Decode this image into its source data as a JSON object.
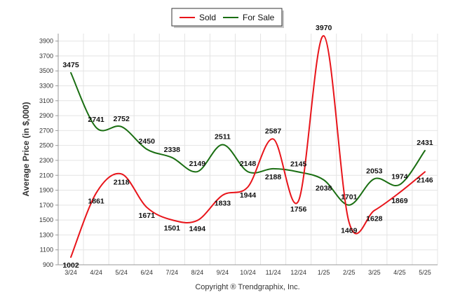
{
  "chart_data": {
    "type": "line",
    "categories": [
      "3/24",
      "4/24",
      "5/24",
      "6/24",
      "7/24",
      "8/24",
      "9/24",
      "10/24",
      "11/24",
      "12/24",
      "1/25",
      "2/25",
      "3/25",
      "4/25",
      "5/25"
    ],
    "series": [
      {
        "name": "Sold",
        "color": "#e8141a",
        "values": [
          1002,
          1861,
          2118,
          1671,
          1501,
          1494,
          1833,
          1944,
          2587,
          1756,
          3970,
          1469,
          1628,
          1869,
          2146
        ]
      },
      {
        "name": "For Sale",
        "color": "#1a6e12",
        "values": [
          3475,
          2741,
          2752,
          2450,
          2338,
          2149,
          2511,
          2148,
          2188,
          2145,
          2038,
          1701,
          2053,
          1974,
          2431
        ]
      }
    ],
    "ylabel": "Average Price (in $,000)",
    "xlabel": "",
    "ylim": [
      900,
      4000
    ],
    "yticks": [
      900,
      1100,
      1300,
      1500,
      1700,
      1900,
      2100,
      2300,
      2500,
      2700,
      2900,
      3100,
      3300,
      3500,
      3700,
      3900
    ],
    "grid": true,
    "legend_position": "top-center"
  },
  "footer": {
    "copyright": "Copyright ® Trendgraphix, Inc."
  }
}
